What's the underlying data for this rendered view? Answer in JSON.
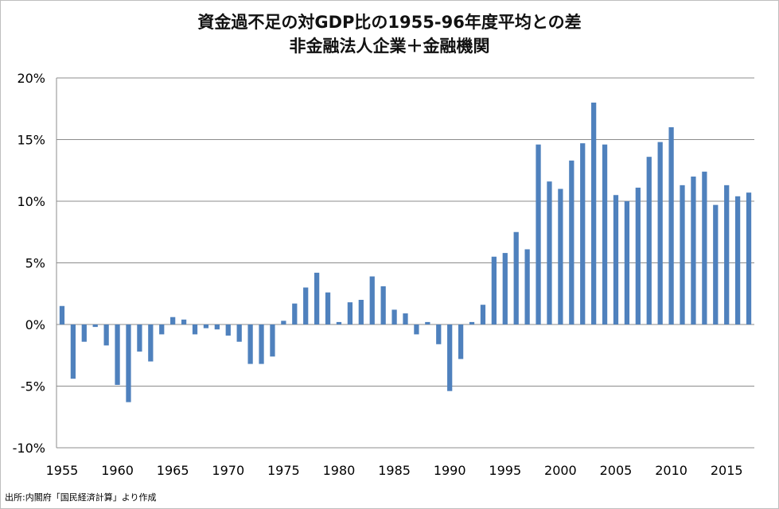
{
  "chart_data": {
    "type": "bar",
    "title": [
      "資金過不足の対GDP比の1955-96年度平均との差",
      "非金融法人企業＋金融機関"
    ],
    "xlabel": "",
    "ylabel": "",
    "x": [
      1955,
      1956,
      1957,
      1958,
      1959,
      1960,
      1961,
      1962,
      1963,
      1964,
      1965,
      1966,
      1967,
      1968,
      1969,
      1970,
      1971,
      1972,
      1973,
      1974,
      1975,
      1976,
      1977,
      1978,
      1979,
      1980,
      1981,
      1982,
      1983,
      1984,
      1985,
      1986,
      1987,
      1988,
      1989,
      1990,
      1991,
      1992,
      1993,
      1994,
      1995,
      1996,
      1997,
      1998,
      1999,
      2000,
      2001,
      2002,
      2003,
      2004,
      2005,
      2006,
      2007,
      2008,
      2009,
      2010,
      2011,
      2012,
      2013,
      2014,
      2015,
      2016,
      2017
    ],
    "values": [
      1.5,
      -4.4,
      -1.4,
      -0.2,
      -1.7,
      -4.9,
      -6.3,
      -2.2,
      -3.0,
      -0.8,
      0.6,
      0.4,
      -0.8,
      -0.3,
      -0.4,
      -0.9,
      -1.4,
      -3.2,
      -3.2,
      -2.6,
      0.3,
      1.7,
      3.0,
      4.2,
      2.6,
      0.2,
      1.8,
      2.0,
      3.9,
      3.1,
      1.2,
      0.9,
      -0.8,
      0.2,
      -1.6,
      -5.4,
      -2.8,
      0.2,
      1.6,
      5.5,
      5.8,
      7.5,
      6.1,
      14.6,
      11.6,
      11.0,
      13.3,
      14.7,
      18.0,
      14.6,
      10.5,
      10.0,
      11.1,
      13.6,
      14.8,
      16.0,
      11.3,
      12.0,
      12.4,
      9.7,
      11.3,
      10.4,
      10.7
    ],
    "ylim": [
      -10,
      20
    ],
    "yticks": [
      "20%",
      "15%",
      "10%",
      "5%",
      "0%",
      "-5%",
      "-10%"
    ],
    "xtick_labels": [
      "1955",
      "1960",
      "1965",
      "1970",
      "1975",
      "1980",
      "1985",
      "1990",
      "1995",
      "2000",
      "2005",
      "2010",
      "2015"
    ],
    "bar_color": "#4f81bd",
    "grid": true
  },
  "source_note": "出所:内閣府「国民経済計算」より作成"
}
